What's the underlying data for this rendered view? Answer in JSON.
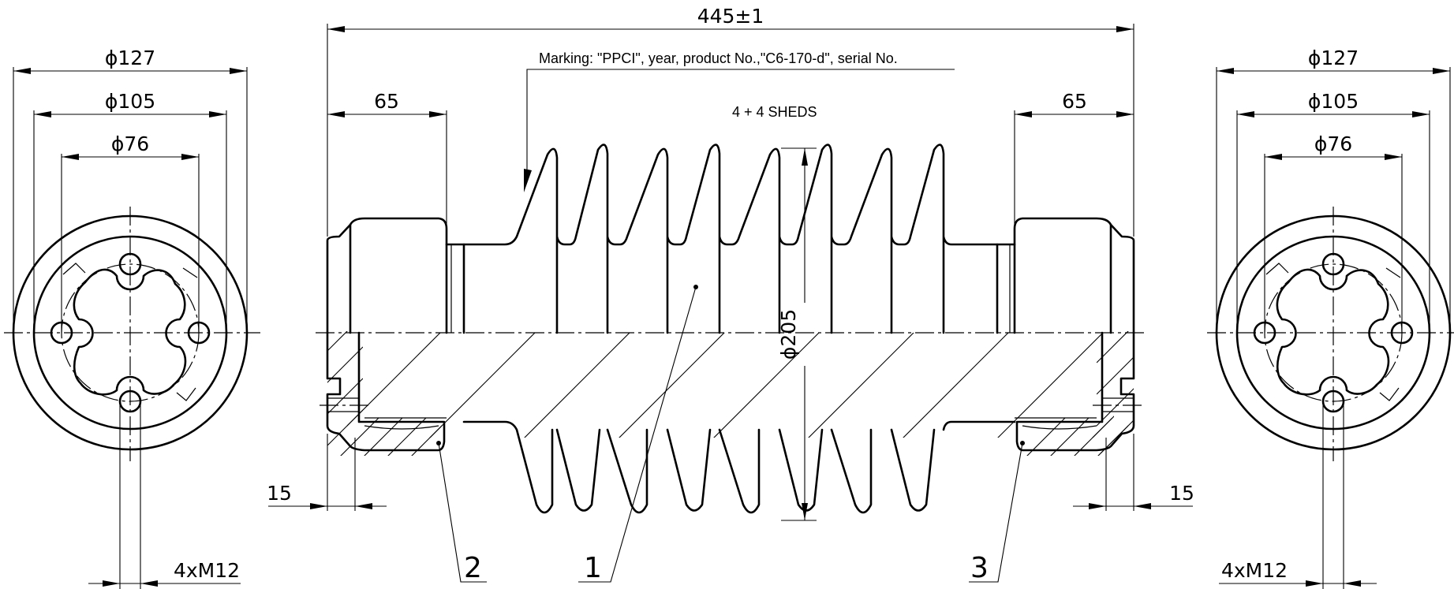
{
  "dimensions": {
    "overall_length": "445±1",
    "flange_length_left": "65",
    "flange_length_right": "65",
    "shed_diameter": "ϕ205",
    "end_outer_diameter_left": "ϕ127",
    "bolt_circle_diameter_left": "ϕ105",
    "bore_diameter_left": "ϕ76",
    "end_outer_diameter_right": "ϕ127",
    "bolt_circle_diameter_right": "ϕ105",
    "bore_diameter_right": "ϕ76",
    "groove_left": "15",
    "groove_right": "15",
    "thread_left": "4xM12",
    "thread_right": "4xM12"
  },
  "notes": {
    "marking": "Marking: \"PPCI\", year, product No.,\"C6-170-d\", serial No.",
    "sheds": "4 + 4 SHEDS"
  },
  "callouts": {
    "part_1": "1",
    "part_2": "2",
    "part_3": "3"
  }
}
